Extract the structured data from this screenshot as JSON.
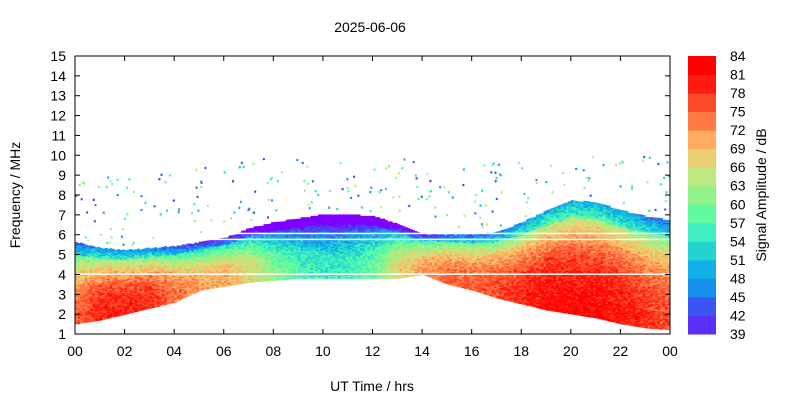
{
  "chart_data": {
    "type": "heatmap",
    "title": "2025-06-06",
    "xlabel": "UT Time / hrs",
    "ylabel": "Frequency / MHz",
    "colorbar_label": "Signal Amplitude / dB",
    "xlim": [
      0,
      24
    ],
    "ylim": [
      1,
      15
    ],
    "x_ticks": [
      "00",
      "02",
      "04",
      "06",
      "08",
      "10",
      "12",
      "14",
      "16",
      "18",
      "20",
      "22",
      "00"
    ],
    "y_ticks": [
      "1",
      "2",
      "3",
      "4",
      "5",
      "6",
      "7",
      "8",
      "9",
      "10",
      "11",
      "12",
      "13",
      "14",
      "15"
    ],
    "color_scale": {
      "values": [
        39,
        42,
        45,
        48,
        51,
        54,
        57,
        60,
        63,
        66,
        69,
        72,
        75,
        78,
        81,
        84
      ],
      "colors": [
        "#8000ff",
        "#5a30f8",
        "#3a55f0",
        "#1890ee",
        "#12b0e6",
        "#22d4d0",
        "#40f0c0",
        "#62fa9e",
        "#90f288",
        "#c0e880",
        "#ead070",
        "#ffac60",
        "#ff7a44",
        "#ff4a28",
        "#ff1a10",
        "#ff0000"
      ]
    },
    "series": [
      {
        "x": [
          0,
          1,
          2,
          3,
          4,
          5,
          6,
          7,
          8,
          9,
          10,
          11,
          12,
          13,
          14,
          15,
          16,
          17,
          18,
          19,
          20,
          21,
          22,
          23,
          24
        ],
        "y_low": [
          1.5,
          1.7,
          2.0,
          2.3,
          2.6,
          3.2,
          3.4,
          3.6,
          3.7,
          3.8,
          3.8,
          3.8,
          3.8,
          3.8,
          4.0,
          3.5,
          3.2,
          2.8,
          2.5,
          2.2,
          2.0,
          1.8,
          1.5,
          1.3,
          1.2
        ],
        "y_high": [
          5.6,
          5.3,
          5.2,
          5.3,
          5.4,
          5.6,
          5.8,
          6.3,
          6.6,
          6.8,
          7.0,
          7.0,
          6.9,
          6.5,
          6.0,
          6.0,
          6.0,
          6.1,
          6.6,
          7.2,
          7.7,
          7.6,
          7.2,
          6.9,
          6.7
        ],
        "peak_db": [
          78,
          82,
          82,
          81,
          77,
          74,
          74,
          70,
          64,
          60,
          58,
          59,
          62,
          70,
          74,
          78,
          78,
          80,
          82,
          84,
          84,
          84,
          83,
          81,
          79
        ]
      }
    ]
  }
}
